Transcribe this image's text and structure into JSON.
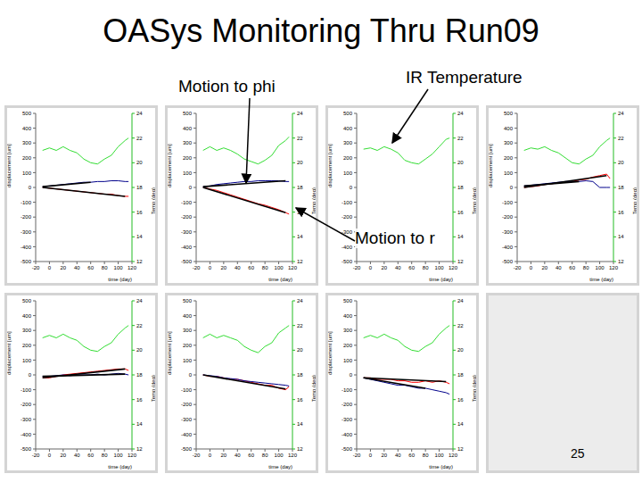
{
  "title": "OASys Monitoring Thru Run09",
  "annotations": [
    "Motion to phi",
    "IR Temperature",
    "Motion to r"
  ],
  "page_number": "25",
  "chart_data": [
    {
      "type": "line",
      "x_label": "time (day)",
      "y_label": "displacement [um]",
      "y2_label": "Temp (deg)",
      "x": [
        -10,
        0,
        10,
        20,
        30,
        40,
        50,
        60,
        70,
        80,
        90,
        100,
        110,
        115
      ],
      "xlim": [
        -20,
        120
      ],
      "xticks": [
        -20,
        0,
        20,
        40,
        60,
        80,
        100,
        120
      ],
      "ylim": [
        -500,
        500
      ],
      "yticks": [
        -500,
        -400,
        -300,
        -200,
        -100,
        0,
        100,
        200,
        300,
        400,
        500
      ],
      "y2lim": [
        12,
        24
      ],
      "y2ticks": [
        12,
        14,
        16,
        18,
        20,
        22,
        24
      ],
      "series": [
        {
          "color": "#33dd33",
          "axis": "y2",
          "values": [
            21.0,
            21.2,
            21.0,
            21.3,
            21.0,
            20.8,
            20.3,
            20.0,
            19.9,
            20.3,
            20.6,
            21.3,
            21.8,
            22.0
          ]
        },
        {
          "color": "#ff0000",
          "values": [
            0,
            -5,
            -10,
            -15,
            -20,
            -25,
            -30,
            -35,
            -40,
            -45,
            -45,
            -55,
            -60,
            -60
          ]
        },
        {
          "color": "#00008b",
          "values": [
            5,
            10,
            15,
            20,
            25,
            30,
            35,
            35,
            40,
            40,
            45,
            45,
            40,
            40
          ]
        },
        {
          "color": "#000000",
          "values": [
            0,
            null,
            null,
            null,
            null,
            null,
            null,
            null,
            null,
            null,
            null,
            null,
            -60,
            null
          ]
        },
        {
          "color": "#000000",
          "values": [
            5,
            null,
            null,
            null,
            null,
            null,
            null,
            35,
            null,
            null,
            null,
            null,
            null,
            null
          ]
        }
      ]
    },
    {
      "type": "line",
      "x_label": "time (day)",
      "y_label": "displacement [um]",
      "y2_label": "Temp (deg)",
      "x": [
        -10,
        0,
        10,
        20,
        30,
        40,
        50,
        60,
        70,
        80,
        90,
        100,
        110,
        115
      ],
      "xlim": [
        -20,
        120
      ],
      "xticks": [
        -20,
        0,
        20,
        40,
        60,
        80,
        100,
        120
      ],
      "ylim": [
        -500,
        500
      ],
      "yticks": [
        -500,
        -400,
        -300,
        -200,
        -100,
        0,
        100,
        200,
        300,
        400,
        500
      ],
      "y2lim": [
        12,
        24
      ],
      "y2ticks": [
        12,
        14,
        16,
        18,
        20,
        22,
        24
      ],
      "series": [
        {
          "color": "#33dd33",
          "axis": "y2",
          "values": [
            21.0,
            21.3,
            21.0,
            21.2,
            21.0,
            20.7,
            20.3,
            20.1,
            19.9,
            20.2,
            20.6,
            21.4,
            21.8,
            22.1
          ]
        },
        {
          "color": "#ff0000",
          "values": [
            0,
            -10,
            -20,
            -35,
            -50,
            -65,
            -80,
            -95,
            -110,
            -120,
            -135,
            -150,
            -170,
            -180
          ]
        },
        {
          "color": "#00008b",
          "values": [
            5,
            10,
            20,
            25,
            30,
            35,
            40,
            40,
            45,
            45,
            45,
            45,
            40,
            40
          ]
        },
        {
          "color": "#000000",
          "values": [
            0,
            null,
            null,
            null,
            null,
            null,
            null,
            null,
            null,
            null,
            null,
            null,
            -170,
            null
          ]
        },
        {
          "color": "#000000",
          "values": [
            5,
            null,
            null,
            null,
            null,
            null,
            null,
            null,
            null,
            null,
            null,
            null,
            45,
            null
          ]
        }
      ]
    },
    {
      "type": "line",
      "x_label": "time (day)",
      "y_label": "displacement [um]",
      "y2_label": "Temp (deg)",
      "x": [
        -10,
        0,
        10,
        20,
        30,
        40,
        50,
        60,
        70,
        80,
        90,
        100,
        110,
        115
      ],
      "xlim": [
        -20,
        120
      ],
      "xticks": [
        -20,
        0,
        20,
        40,
        60,
        80,
        100,
        120
      ],
      "ylim": [
        -500,
        500
      ],
      "yticks": [
        -500,
        -400,
        -300,
        -200,
        -100,
        0,
        100,
        200,
        300,
        400,
        500
      ],
      "y2lim": [
        12,
        24
      ],
      "y2ticks": [
        12,
        14,
        16,
        18,
        20,
        22,
        24
      ],
      "series": [
        {
          "color": "#33dd33",
          "axis": "y2",
          "values": [
            21.1,
            21.2,
            21.0,
            21.3,
            21.1,
            20.8,
            20.2,
            20.0,
            19.9,
            20.3,
            20.7,
            21.3,
            21.9,
            22.0
          ]
        }
      ]
    },
    {
      "type": "line",
      "x_label": "time (day)",
      "y_label": "displacement [um]",
      "y2_label": "Temp (deg)",
      "x": [
        -10,
        0,
        10,
        20,
        30,
        40,
        50,
        60,
        70,
        80,
        90,
        100,
        110,
        115
      ],
      "xlim": [
        -20,
        120
      ],
      "xticks": [
        -20,
        0,
        20,
        40,
        60,
        80,
        100,
        120
      ],
      "ylim": [
        -500,
        500
      ],
      "yticks": [
        -500,
        -400,
        -300,
        -200,
        -100,
        0,
        100,
        200,
        300,
        400,
        500
      ],
      "y2lim": [
        12,
        24
      ],
      "y2ticks": [
        12,
        14,
        16,
        18,
        20,
        22,
        24
      ],
      "series": [
        {
          "color": "#33dd33",
          "axis": "y2",
          "values": [
            21.0,
            21.2,
            21.1,
            21.3,
            21.0,
            20.8,
            20.4,
            20.0,
            19.9,
            20.3,
            20.6,
            21.3,
            21.8,
            22.0
          ]
        },
        {
          "color": "#ff0000",
          "values": [
            0,
            5,
            10,
            20,
            25,
            30,
            35,
            40,
            50,
            55,
            70,
            80,
            90,
            60
          ]
        },
        {
          "color": "#00008b",
          "values": [
            10,
            15,
            20,
            25,
            30,
            35,
            40,
            40,
            40,
            45,
            40,
            0,
            0,
            0
          ]
        },
        {
          "color": "#000000",
          "values": [
            0,
            null,
            null,
            null,
            null,
            null,
            null,
            null,
            null,
            null,
            null,
            null,
            80,
            null
          ]
        },
        {
          "color": "#000000",
          "values": [
            10,
            null,
            null,
            null,
            null,
            null,
            null,
            null,
            40,
            null,
            null,
            null,
            null,
            null
          ]
        }
      ]
    },
    {
      "type": "line",
      "x_label": "time (day)",
      "y_label": "displacement [um]",
      "y2_label": "Temp (deg)",
      "x": [
        -10,
        0,
        10,
        20,
        30,
        40,
        50,
        60,
        70,
        80,
        90,
        100,
        110,
        115
      ],
      "xlim": [
        -20,
        120
      ],
      "xticks": [
        -20,
        0,
        20,
        40,
        60,
        80,
        100,
        120
      ],
      "ylim": [
        -500,
        500
      ],
      "yticks": [
        -500,
        -400,
        -300,
        -200,
        -100,
        0,
        100,
        200,
        300,
        400,
        500
      ],
      "y2lim": [
        12,
        24
      ],
      "y2ticks": [
        12,
        14,
        16,
        18,
        20,
        22,
        24
      ],
      "series": [
        {
          "color": "#33dd33",
          "axis": "y2",
          "values": [
            21.0,
            21.2,
            21.0,
            21.3,
            21.0,
            20.8,
            20.3,
            20.0,
            19.9,
            20.3,
            20.6,
            21.3,
            21.8,
            22.0
          ]
        },
        {
          "color": "#ff0000",
          "values": [
            -20,
            -20,
            -10,
            0,
            5,
            10,
            15,
            20,
            25,
            30,
            35,
            40,
            40,
            30
          ]
        },
        {
          "color": "#00008b",
          "values": [
            -10,
            -10,
            -5,
            0,
            -5,
            0,
            0,
            0,
            5,
            0,
            5,
            10,
            5,
            0
          ]
        },
        {
          "color": "#000000",
          "values": [
            -20,
            null,
            null,
            null,
            null,
            null,
            null,
            null,
            null,
            null,
            null,
            null,
            40,
            null
          ]
        },
        {
          "color": "#000000",
          "values": [
            -10,
            null,
            null,
            null,
            null,
            null,
            null,
            null,
            null,
            null,
            null,
            null,
            5,
            null
          ]
        }
      ]
    },
    {
      "type": "line",
      "x_label": "time (day)",
      "y_label": "displacement [um]",
      "y2_label": "Temp (deg)",
      "x": [
        -10,
        0,
        10,
        20,
        30,
        40,
        50,
        60,
        70,
        80,
        90,
        100,
        110,
        115
      ],
      "xlim": [
        -20,
        120
      ],
      "xticks": [
        -20,
        0,
        20,
        40,
        60,
        80,
        100,
        120
      ],
      "ylim": [
        -500,
        500
      ],
      "yticks": [
        -500,
        -400,
        -300,
        -200,
        -100,
        0,
        100,
        200,
        300,
        400,
        500
      ],
      "y2lim": [
        12,
        24
      ],
      "y2ticks": [
        12,
        14,
        16,
        18,
        20,
        22,
        24
      ],
      "series": [
        {
          "color": "#33dd33",
          "axis": "y2",
          "values": [
            21.0,
            21.3,
            21.0,
            21.2,
            21.0,
            20.8,
            20.3,
            20.0,
            19.8,
            20.3,
            20.6,
            21.4,
            21.8,
            22.0
          ]
        },
        {
          "color": "#ff0000",
          "values": [
            0,
            -10,
            -10,
            -20,
            -30,
            -30,
            -40,
            -50,
            -60,
            -70,
            -70,
            -90,
            -100,
            -80
          ]
        },
        {
          "color": "#00008b",
          "values": [
            0,
            -5,
            -10,
            -20,
            -25,
            -30,
            -40,
            -45,
            -50,
            -55,
            -60,
            -65,
            -70,
            -75
          ]
        },
        {
          "color": "#000000",
          "values": [
            0,
            null,
            null,
            null,
            null,
            null,
            null,
            null,
            null,
            null,
            null,
            null,
            -95,
            null
          ]
        }
      ]
    },
    {
      "type": "line",
      "x_label": "time (day)",
      "y_label": "displacement [um]",
      "y2_label": "Temp (deg)",
      "x": [
        -10,
        0,
        10,
        20,
        30,
        40,
        50,
        60,
        70,
        80,
        90,
        100,
        110,
        115
      ],
      "xlim": [
        -20,
        120
      ],
      "xticks": [
        -20,
        0,
        20,
        40,
        60,
        80,
        100,
        120
      ],
      "ylim": [
        -500,
        500
      ],
      "yticks": [
        -500,
        -400,
        -300,
        -200,
        -100,
        0,
        100,
        200,
        300,
        400,
        500
      ],
      "y2lim": [
        12,
        24
      ],
      "y2ticks": [
        12,
        14,
        16,
        18,
        20,
        22,
        24
      ],
      "series": [
        {
          "color": "#33dd33",
          "axis": "y2",
          "values": [
            21.0,
            21.2,
            21.0,
            21.3,
            21.0,
            20.8,
            20.3,
            20.0,
            19.9,
            20.3,
            20.6,
            21.3,
            21.8,
            22.0
          ]
        },
        {
          "color": "#ff0000",
          "values": [
            -20,
            -20,
            -30,
            -30,
            -30,
            -40,
            -40,
            -50,
            -50,
            -40,
            -50,
            -40,
            -50,
            -60
          ]
        },
        {
          "color": "#00008b",
          "values": [
            -20,
            -30,
            -40,
            -50,
            -60,
            -70,
            -70,
            -80,
            -90,
            -90,
            -100,
            -110,
            -120,
            -130
          ]
        },
        {
          "color": "#000000",
          "values": [
            -20,
            null,
            null,
            null,
            null,
            null,
            null,
            null,
            null,
            null,
            null,
            null,
            -45,
            null
          ]
        },
        {
          "color": "#000000",
          "values": [
            -20,
            null,
            null,
            null,
            null,
            null,
            null,
            null,
            null,
            -90,
            null,
            null,
            null,
            null
          ]
        }
      ]
    }
  ]
}
